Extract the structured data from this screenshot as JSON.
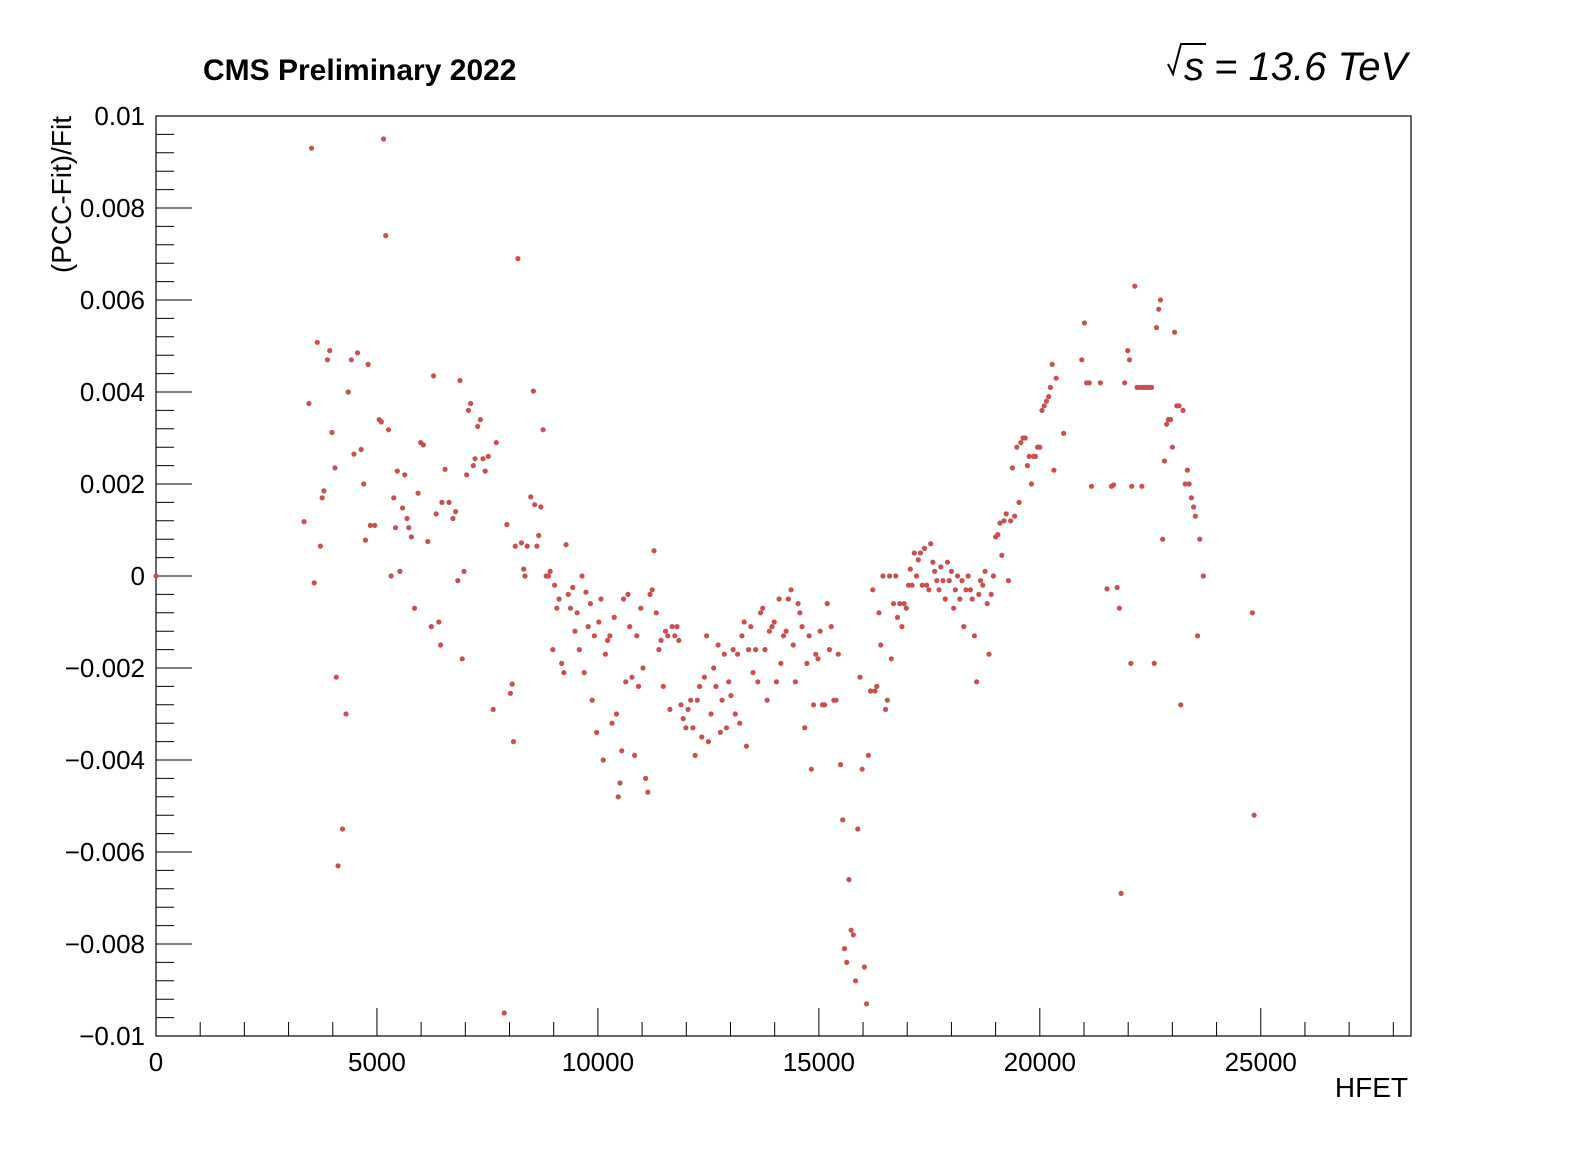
{
  "chart_data": {
    "type": "scatter",
    "title": "CMS Preliminary 2022",
    "energy_label": "= 13.6 TeV",
    "energy_symbol": "s",
    "xlabel": "HFET",
    "ylabel": "(PCC-Fit)/Fit",
    "xlim": [
      0,
      28400
    ],
    "ylim": [
      -0.01,
      0.01
    ],
    "xticks": [
      0,
      5000,
      10000,
      15000,
      20000,
      25000
    ],
    "xtick_labels": [
      "0",
      "5000",
      "10000",
      "15000",
      "20000",
      "25000"
    ],
    "yticks": [
      -0.01,
      -0.008,
      -0.006,
      -0.004,
      -0.002,
      0,
      0.002,
      0.004,
      0.006,
      0.008,
      0.01
    ],
    "ytick_labels": [
      "−0.01",
      "−0.008",
      "−0.006",
      "−0.004",
      "−0.002",
      "0",
      "0.002",
      "0.004",
      "0.006",
      "0.008",
      "0.01"
    ],
    "grid": false,
    "marker_color": "#c85050",
    "points": [
      [
        0,
        0.0
      ],
      [
        3350,
        0.00118
      ],
      [
        3460,
        0.00375
      ],
      [
        3520,
        0.0093
      ],
      [
        3580,
        -0.00015
      ],
      [
        3650,
        0.00508
      ],
      [
        3720,
        0.00065
      ],
      [
        3760,
        0.0017
      ],
      [
        3800,
        0.00185
      ],
      [
        3880,
        0.0047
      ],
      [
        3930,
        0.0049
      ],
      [
        3980,
        0.00312
      ],
      [
        4050,
        0.00235
      ],
      [
        4080,
        -0.0022
      ],
      [
        4120,
        -0.0063
      ],
      [
        4220,
        -0.0055
      ],
      [
        4300,
        -0.003
      ],
      [
        4350,
        0.004
      ],
      [
        4420,
        0.0047
      ],
      [
        4480,
        0.00265
      ],
      [
        4560,
        0.00485
      ],
      [
        4640,
        0.00275
      ],
      [
        4700,
        0.002
      ],
      [
        4740,
        0.00078
      ],
      [
        4800,
        0.0046
      ],
      [
        4850,
        0.0011
      ],
      [
        4950,
        0.0011
      ],
      [
        5050,
        0.0034
      ],
      [
        5100,
        0.00335
      ],
      [
        5150,
        0.0095
      ],
      [
        5200,
        0.0074
      ],
      [
        5260,
        0.00318
      ],
      [
        5320,
        0.0
      ],
      [
        5380,
        0.0017
      ],
      [
        5420,
        0.00105
      ],
      [
        5460,
        0.00228
      ],
      [
        5520,
        0.0001
      ],
      [
        5580,
        0.00148
      ],
      [
        5630,
        0.0022
      ],
      [
        5680,
        0.00125
      ],
      [
        5720,
        0.00105
      ],
      [
        5780,
        0.00085
      ],
      [
        5850,
        -0.0007
      ],
      [
        5930,
        0.0018
      ],
      [
        5990,
        0.0029
      ],
      [
        6050,
        0.00285
      ],
      [
        6150,
        0.00075
      ],
      [
        6230,
        -0.0011
      ],
      [
        6280,
        0.00435
      ],
      [
        6340,
        0.00135
      ],
      [
        6400,
        -0.001
      ],
      [
        6440,
        -0.0015
      ],
      [
        6470,
        0.0016
      ],
      [
        6540,
        0.00232
      ],
      [
        6630,
        0.0016
      ],
      [
        6720,
        0.00125
      ],
      [
        6780,
        0.0014
      ],
      [
        6830,
        -0.0001
      ],
      [
        6880,
        0.00425
      ],
      [
        6930,
        -0.0018
      ],
      [
        6970,
        0.0001
      ],
      [
        7030,
        0.0022
      ],
      [
        7070,
        0.0036
      ],
      [
        7120,
        0.00375
      ],
      [
        7180,
        0.0024
      ],
      [
        7220,
        0.00255
      ],
      [
        7280,
        0.00325
      ],
      [
        7340,
        0.0034
      ],
      [
        7400,
        0.00255
      ],
      [
        7450,
        0.00228
      ],
      [
        7520,
        0.0026
      ],
      [
        7630,
        -0.0029
      ],
      [
        7700,
        0.0029
      ],
      [
        7880,
        -0.0095
      ],
      [
        7940,
        0.00112
      ],
      [
        8020,
        -0.00255
      ],
      [
        8060,
        -0.00235
      ],
      [
        8090,
        -0.0036
      ],
      [
        8130,
        0.00065
      ],
      [
        8190,
        0.0069
      ],
      [
        8270,
        0.00072
      ],
      [
        8320,
        0.00015
      ],
      [
        8350,
        -0.0
      ],
      [
        8400,
        0.00065
      ],
      [
        8480,
        0.00172
      ],
      [
        8540,
        0.00402
      ],
      [
        8570,
        0.00155
      ],
      [
        8620,
        0.00065
      ],
      [
        8660,
        0.00088
      ],
      [
        8710,
        0.0015
      ],
      [
        8760,
        0.00318
      ],
      [
        8830,
        0.0
      ],
      [
        8880,
        0.0
      ],
      [
        8920,
        0.0001
      ],
      [
        8980,
        -0.0016
      ],
      [
        9020,
        -0.0002
      ],
      [
        9070,
        -0.0007
      ],
      [
        9120,
        -0.0005
      ],
      [
        9180,
        -0.0019
      ],
      [
        9230,
        -0.0021
      ],
      [
        9280,
        0.00068
      ],
      [
        9330,
        -0.0004
      ],
      [
        9380,
        -0.0007
      ],
      [
        9430,
        -0.00025
      ],
      [
        9480,
        -0.0012
      ],
      [
        9530,
        -0.0008
      ],
      [
        9580,
        -0.0016
      ],
      [
        9640,
        -0.0
      ],
      [
        9690,
        -0.0021
      ],
      [
        9730,
        -0.00035
      ],
      [
        9780,
        -0.0011
      ],
      [
        9830,
        -0.0006
      ],
      [
        9870,
        -0.0027
      ],
      [
        9920,
        -0.0013
      ],
      [
        9970,
        -0.0034
      ],
      [
        10020,
        -0.001
      ],
      [
        10070,
        -0.0005
      ],
      [
        10120,
        -0.004
      ],
      [
        10170,
        -0.0017
      ],
      [
        10220,
        -0.0014
      ],
      [
        10270,
        -0.0013
      ],
      [
        10320,
        -0.0032
      ],
      [
        10370,
        -0.0009
      ],
      [
        10420,
        -0.003
      ],
      [
        10460,
        -0.0048
      ],
      [
        10500,
        -0.0045
      ],
      [
        10540,
        -0.0038
      ],
      [
        10580,
        -0.0005
      ],
      [
        10630,
        -0.0023
      ],
      [
        10680,
        -0.0004
      ],
      [
        10720,
        -0.0011
      ],
      [
        10770,
        -0.0022
      ],
      [
        10830,
        -0.0039
      ],
      [
        10880,
        -0.0013
      ],
      [
        10920,
        -0.0024
      ],
      [
        10970,
        -0.0007
      ],
      [
        11020,
        -0.002
      ],
      [
        11080,
        -0.0044
      ],
      [
        11130,
        -0.0047
      ],
      [
        11180,
        -0.0004
      ],
      [
        11230,
        -0.0003
      ],
      [
        11270,
        0.00055
      ],
      [
        11320,
        -0.0008
      ],
      [
        11380,
        -0.0016
      ],
      [
        11430,
        -0.0014
      ],
      [
        11480,
        -0.0024
      ],
      [
        11530,
        -0.0012
      ],
      [
        11580,
        -0.0013
      ],
      [
        11630,
        -0.0029
      ],
      [
        11680,
        -0.0011
      ],
      [
        11740,
        -0.0013
      ],
      [
        11790,
        -0.0011
      ],
      [
        11830,
        -0.0014
      ],
      [
        11880,
        -0.0028
      ],
      [
        11930,
        -0.0031
      ],
      [
        11990,
        -0.0033
      ],
      [
        12040,
        -0.0029
      ],
      [
        12100,
        -0.0027
      ],
      [
        12150,
        -0.0033
      ],
      [
        12200,
        -0.0039
      ],
      [
        12250,
        -0.0027
      ],
      [
        12300,
        -0.0024
      ],
      [
        12350,
        -0.0035
      ],
      [
        12410,
        -0.0022
      ],
      [
        12460,
        -0.0013
      ],
      [
        12500,
        -0.0036
      ],
      [
        12560,
        -0.003
      ],
      [
        12620,
        -0.002
      ],
      [
        12670,
        -0.0024
      ],
      [
        12720,
        -0.0015
      ],
      [
        12770,
        -0.0034
      ],
      [
        12810,
        -0.0027
      ],
      [
        12860,
        -0.0017
      ],
      [
        12910,
        -0.0033
      ],
      [
        12960,
        -0.0023
      ],
      [
        13010,
        -0.0026
      ],
      [
        13060,
        -0.0016
      ],
      [
        13110,
        -0.003
      ],
      [
        13160,
        -0.0017
      ],
      [
        13210,
        -0.0032
      ],
      [
        13260,
        -0.0013
      ],
      [
        13310,
        -0.001
      ],
      [
        13360,
        -0.0037
      ],
      [
        13410,
        -0.0016
      ],
      [
        13460,
        -0.0011
      ],
      [
        13510,
        -0.0021
      ],
      [
        13570,
        -0.0016
      ],
      [
        13620,
        -0.0023
      ],
      [
        13680,
        -0.0008
      ],
      [
        13730,
        -0.0007
      ],
      [
        13780,
        -0.0016
      ],
      [
        13830,
        -0.0027
      ],
      [
        13880,
        -0.0012
      ],
      [
        13940,
        -0.0011
      ],
      [
        13990,
        -0.001
      ],
      [
        14040,
        -0.0023
      ],
      [
        14100,
        -0.0005
      ],
      [
        14140,
        -0.0019
      ],
      [
        14200,
        -0.0013
      ],
      [
        14260,
        -0.0012
      ],
      [
        14310,
        -0.0005
      ],
      [
        14370,
        -0.0003
      ],
      [
        14420,
        -0.0015
      ],
      [
        14470,
        -0.0023
      ],
      [
        14530,
        -0.0006
      ],
      [
        14570,
        -0.0008
      ],
      [
        14620,
        -0.0011
      ],
      [
        14680,
        -0.0033
      ],
      [
        14730,
        -0.0019
      ],
      [
        14780,
        -0.0013
      ],
      [
        14830,
        -0.0042
      ],
      [
        14880,
        -0.0028
      ],
      [
        14930,
        -0.0017
      ],
      [
        14980,
        -0.0018
      ],
      [
        15030,
        -0.0012
      ],
      [
        15080,
        -0.0028
      ],
      [
        15130,
        -0.0028
      ],
      [
        15190,
        -0.0006
      ],
      [
        15240,
        -0.0016
      ],
      [
        15280,
        -0.0011
      ],
      [
        15340,
        -0.0027
      ],
      [
        15390,
        -0.0027
      ],
      [
        15440,
        -0.0017
      ],
      [
        15490,
        -0.0041
      ],
      [
        15540,
        -0.0053
      ],
      [
        15580,
        -0.0081
      ],
      [
        15630,
        -0.0084
      ],
      [
        15680,
        -0.0066
      ],
      [
        15730,
        -0.0077
      ],
      [
        15780,
        -0.0078
      ],
      [
        15830,
        -0.0088
      ],
      [
        15880,
        -0.0055
      ],
      [
        15930,
        -0.0022
      ],
      [
        15980,
        -0.0042
      ],
      [
        16030,
        -0.0085
      ],
      [
        16080,
        -0.0093
      ],
      [
        16120,
        -0.0039
      ],
      [
        16170,
        -0.0025
      ],
      [
        16220,
        -0.0003
      ],
      [
        16270,
        -0.0025
      ],
      [
        16310,
        -0.0024
      ],
      [
        16360,
        -0.0008
      ],
      [
        16400,
        -0.0015
      ],
      [
        16450,
        0.0
      ],
      [
        16510,
        -0.0029
      ],
      [
        16550,
        -0.0027
      ],
      [
        16600,
        0.0
      ],
      [
        16640,
        -0.0018
      ],
      [
        16690,
        -0.0006
      ],
      [
        16740,
        0.0
      ],
      [
        16780,
        -0.0009
      ],
      [
        16830,
        -0.0006
      ],
      [
        16880,
        -0.0011
      ],
      [
        16930,
        -0.0006
      ],
      [
        16980,
        -0.0007
      ],
      [
        17030,
        -0.0002
      ],
      [
        17070,
        0.00015
      ],
      [
        17110,
        -0.0002
      ],
      [
        17160,
        0.0005
      ],
      [
        17210,
        0.0
      ],
      [
        17250,
        0.00035
      ],
      [
        17300,
        0.0005
      ],
      [
        17340,
        -0.0002
      ],
      [
        17390,
        0.0006
      ],
      [
        17440,
        -0.0002
      ],
      [
        17490,
        -0.0003
      ],
      [
        17530,
        0.0007
      ],
      [
        17580,
        0.0003
      ],
      [
        17620,
        0.0001
      ],
      [
        17670,
        -0.0001
      ],
      [
        17720,
        -0.0003
      ],
      [
        17760,
        0.0002
      ],
      [
        17810,
        -0.0001
      ],
      [
        17860,
        -0.0005
      ],
      [
        17910,
        0.0003
      ],
      [
        17950,
        -0.0001
      ],
      [
        18000,
        0.0001
      ],
      [
        18050,
        -0.0007
      ],
      [
        18090,
        -0.0003
      ],
      [
        18140,
        0.0
      ],
      [
        18190,
        -0.0005
      ],
      [
        18240,
        -0.0001
      ],
      [
        18280,
        -0.0011
      ],
      [
        18330,
        -0.0003
      ],
      [
        18380,
        0.0
      ],
      [
        18430,
        -0.0003
      ],
      [
        18470,
        -0.0005
      ],
      [
        18520,
        -0.0013
      ],
      [
        18570,
        -0.0023
      ],
      [
        18620,
        -0.0004
      ],
      [
        18660,
        -0.0001
      ],
      [
        18710,
        -0.0002
      ],
      [
        18760,
        0.0001
      ],
      [
        18810,
        -0.0006
      ],
      [
        18850,
        -0.0017
      ],
      [
        18900,
        -0.0004
      ],
      [
        18950,
        0.0
      ],
      [
        19000,
        0.00085
      ],
      [
        19050,
        0.0009
      ],
      [
        19100,
        0.00115
      ],
      [
        19140,
        0.00045
      ],
      [
        19190,
        0.0012
      ],
      [
        19240,
        0.00135
      ],
      [
        19290,
        -0.0001
      ],
      [
        19340,
        0.0012
      ],
      [
        19380,
        0.00235
      ],
      [
        19430,
        0.0013
      ],
      [
        19480,
        0.0028
      ],
      [
        19530,
        0.0016
      ],
      [
        19570,
        0.0029
      ],
      [
        19620,
        0.003
      ],
      [
        19670,
        0.003
      ],
      [
        19720,
        0.0024
      ],
      [
        19760,
        0.0026
      ],
      [
        19810,
        0.002
      ],
      [
        19860,
        0.0026
      ],
      [
        19900,
        0.0026
      ],
      [
        19950,
        0.0028
      ],
      [
        20000,
        0.0028
      ],
      [
        20050,
        0.0036
      ],
      [
        20100,
        0.0037
      ],
      [
        20150,
        0.0038
      ],
      [
        20200,
        0.0039
      ],
      [
        20240,
        0.0041
      ],
      [
        20280,
        0.0046
      ],
      [
        20320,
        0.0023
      ],
      [
        20370,
        0.0043
      ],
      [
        20540,
        0.0031
      ],
      [
        20950,
        0.0047
      ],
      [
        21010,
        0.0055
      ],
      [
        21060,
        0.0042
      ],
      [
        21120,
        0.0042
      ],
      [
        21170,
        0.00195
      ],
      [
        21370,
        0.0042
      ],
      [
        21520,
        -0.00028
      ],
      [
        21620,
        0.00195
      ],
      [
        21670,
        0.00198
      ],
      [
        21750,
        -0.00025
      ],
      [
        21800,
        -0.0007
      ],
      [
        21840,
        -0.0069
      ],
      [
        21920,
        0.0042
      ],
      [
        21990,
        0.0049
      ],
      [
        22030,
        0.0047
      ],
      [
        22060,
        -0.0019
      ],
      [
        22080,
        0.00195
      ],
      [
        22150,
        0.0063
      ],
      [
        22200,
        0.0041
      ],
      [
        22260,
        0.0041
      ],
      [
        22310,
        0.00195
      ],
      [
        22330,
        0.0041
      ],
      [
        22380,
        0.0041
      ],
      [
        22440,
        0.0041
      ],
      [
        22480,
        0.0041
      ],
      [
        22530,
        0.0041
      ],
      [
        22590,
        -0.0019
      ],
      [
        22640,
        0.0054
      ],
      [
        22690,
        0.0058
      ],
      [
        22730,
        0.006
      ],
      [
        22780,
        0.0008
      ],
      [
        22820,
        0.0025
      ],
      [
        22870,
        0.0033
      ],
      [
        22910,
        0.0034
      ],
      [
        22960,
        0.0034
      ],
      [
        23000,
        0.0028
      ],
      [
        23050,
        0.0053
      ],
      [
        23100,
        0.0037
      ],
      [
        23150,
        0.0037
      ],
      [
        23190,
        -0.0028
      ],
      [
        23240,
        0.0036
      ],
      [
        23290,
        0.002
      ],
      [
        23340,
        0.0023
      ],
      [
        23380,
        0.002
      ],
      [
        23430,
        0.0017
      ],
      [
        23480,
        0.0015
      ],
      [
        23520,
        0.0013
      ],
      [
        23570,
        -0.0013
      ],
      [
        23620,
        0.0008
      ],
      [
        23700,
        0.0
      ],
      [
        24810,
        -0.0008
      ],
      [
        24850,
        -0.0052
      ]
    ]
  }
}
